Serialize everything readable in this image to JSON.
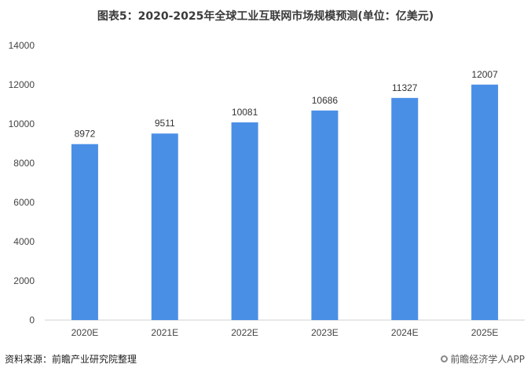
{
  "title": "图表5：2020-2025年全球工业互联网市场规模预测(单位：亿美元)",
  "source": "资料来源：前瞻产业研究院整理",
  "brand": "前瞻经济学人APP",
  "colors": {
    "bar": "#4a8fe6",
    "axis": "#d0d0d0"
  },
  "chart_data": {
    "type": "bar",
    "title": "图表5：2020-2025年全球工业互联网市场规模预测(单位：亿美元)",
    "xlabel": "",
    "ylabel": "",
    "categories": [
      "2020E",
      "2021E",
      "2022E",
      "2023E",
      "2024E",
      "2025E"
    ],
    "values": [
      8972,
      9511,
      10081,
      10686,
      11327,
      12007
    ],
    "ylim": [
      0,
      14000
    ],
    "yticks": [
      0,
      2000,
      4000,
      6000,
      8000,
      10000,
      12000,
      14000
    ],
    "grid": false,
    "legend": "none"
  }
}
